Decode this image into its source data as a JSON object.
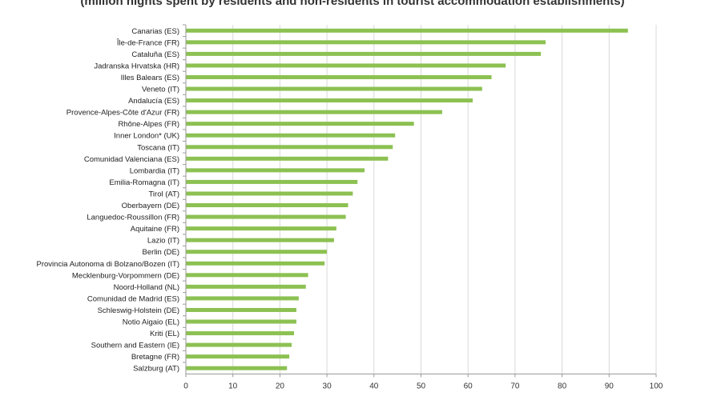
{
  "subtitle": "(million nights spent by residents and non-residents in tourist accommodation establishments)",
  "chart_data": {
    "type": "bar",
    "orientation": "horizontal",
    "title": "",
    "subtitle": "(million nights spent by residents and non-residents in tourist accommodation establishments)",
    "xlabel": "",
    "ylabel": "",
    "xlim": [
      0,
      100
    ],
    "xticks": [
      0,
      10,
      20,
      30,
      40,
      50,
      60,
      70,
      80,
      90,
      100
    ],
    "grid": true,
    "bar_color": "#8cc152",
    "categories": [
      "Canarias (ES)",
      "Île-de-France (FR)",
      "Cataluña (ES)",
      "Jadranska Hrvatska (HR)",
      "Illes Balears (ES)",
      "Veneto (IT)",
      "Andalucía (ES)",
      "Provence-Alpes-Côte d'Azur (FR)",
      "Rhône-Alpes (FR)",
      "Inner London* (UK)",
      "Toscana (IT)",
      "Comunidad Valenciana (ES)",
      "Lombardia (IT)",
      "Emilia-Romagna (IT)",
      "Tirol (AT)",
      "Oberbayern (DE)",
      "Languedoc-Roussillon (FR)",
      "Aquitaine (FR)",
      "Lazio (IT)",
      "Berlin (DE)",
      "Provincia Autonoma di Bolzano/Bozen (IT)",
      "Mecklenburg-Vorpommern (DE)",
      "Noord-Holland (NL)",
      "Comunidad de Madrid (ES)",
      "Schleswig-Holstein (DE)",
      "Notio Aigaio (EL)",
      "Kriti (EL)",
      "Southern and Eastern (IE)",
      "Bretagne (FR)",
      "Salzburg (AT)"
    ],
    "values": [
      94,
      76.5,
      75.5,
      68,
      65,
      63,
      61,
      54.5,
      48.5,
      44.5,
      44,
      43,
      38,
      36.5,
      35.5,
      34.5,
      34,
      32,
      31.5,
      30,
      29.5,
      26,
      25.5,
      24,
      23.5,
      23.5,
      23,
      22.5,
      22,
      21.5
    ]
  }
}
